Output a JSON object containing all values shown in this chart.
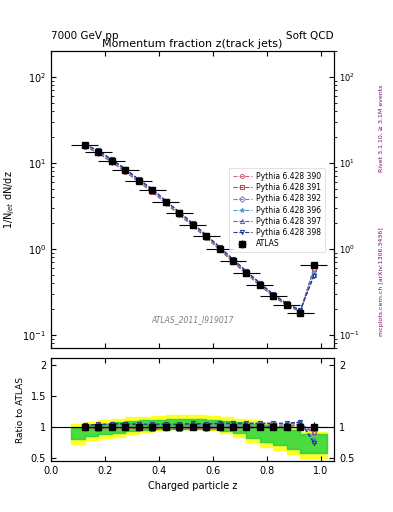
{
  "title_top_left": "7000 GeV pp",
  "title_top_right": "Soft QCD",
  "plot_title": "Momentum fraction z(track jets)",
  "ylabel_main": "1/N$_{jet}$ dN/dz",
  "ylabel_ratio": "Ratio to ATLAS",
  "xlabel": "Charged particle z",
  "rivet_label": "Rivet 3.1.10, ≥ 3.1M events",
  "arxiv_label": "mcplots.cern.ch [arXiv:1306.3436]",
  "watermark": "ATLAS_2011_I919017",
  "z_values": [
    0.125,
    0.175,
    0.225,
    0.275,
    0.325,
    0.375,
    0.425,
    0.475,
    0.525,
    0.575,
    0.625,
    0.675,
    0.725,
    0.775,
    0.825,
    0.875,
    0.925,
    0.975
  ],
  "atlas_y": [
    16.0,
    13.5,
    10.5,
    8.2,
    6.2,
    4.8,
    3.5,
    2.6,
    1.9,
    1.4,
    1.0,
    0.72,
    0.52,
    0.38,
    0.28,
    0.22,
    0.18,
    0.65
  ],
  "atlas_yerr": [
    0.5,
    0.4,
    0.3,
    0.25,
    0.2,
    0.15,
    0.12,
    0.09,
    0.07,
    0.05,
    0.04,
    0.03,
    0.025,
    0.02,
    0.015,
    0.012,
    0.01,
    0.05
  ],
  "py390_y": [
    15.5,
    13.0,
    10.2,
    7.9,
    6.0,
    4.6,
    3.4,
    2.5,
    1.85,
    1.35,
    0.98,
    0.7,
    0.51,
    0.375,
    0.278,
    0.22,
    0.185,
    0.58
  ],
  "py391_y": [
    15.6,
    13.1,
    10.3,
    8.0,
    6.1,
    4.65,
    3.42,
    2.52,
    1.87,
    1.37,
    0.99,
    0.71,
    0.515,
    0.378,
    0.28,
    0.221,
    0.186,
    0.59
  ],
  "py392_y": [
    15.7,
    13.2,
    10.35,
    8.05,
    6.15,
    4.7,
    3.45,
    2.55,
    1.89,
    1.39,
    1.01,
    0.725,
    0.525,
    0.383,
    0.283,
    0.223,
    0.188,
    0.6
  ],
  "py396_y": [
    16.2,
    13.8,
    10.8,
    8.4,
    6.35,
    4.9,
    3.6,
    2.65,
    1.95,
    1.43,
    1.04,
    0.745,
    0.54,
    0.395,
    0.292,
    0.228,
    0.192,
    0.52
  ],
  "py397_y": [
    16.3,
    13.9,
    10.9,
    8.5,
    6.4,
    4.95,
    3.62,
    2.67,
    1.97,
    1.44,
    1.05,
    0.75,
    0.545,
    0.398,
    0.294,
    0.23,
    0.193,
    0.5
  ],
  "py398_y": [
    16.4,
    14.0,
    11.0,
    8.6,
    6.45,
    5.0,
    3.65,
    2.7,
    2.0,
    1.46,
    1.06,
    0.76,
    0.55,
    0.402,
    0.296,
    0.232,
    0.194,
    0.48
  ],
  "band_yellow_lo": [
    0.72,
    0.78,
    0.82,
    0.84,
    0.88,
    0.92,
    0.94,
    0.96,
    0.96,
    0.96,
    0.94,
    0.9,
    0.84,
    0.76,
    0.68,
    0.62,
    0.56,
    0.5
  ],
  "band_yellow_hi": [
    1.05,
    1.08,
    1.1,
    1.12,
    1.15,
    1.16,
    1.17,
    1.18,
    1.18,
    1.18,
    1.17,
    1.15,
    1.13,
    1.1,
    1.06,
    1.02,
    0.98,
    0.92
  ],
  "band_green_lo": [
    0.8,
    0.85,
    0.88,
    0.9,
    0.93,
    0.95,
    0.96,
    0.97,
    0.97,
    0.97,
    0.96,
    0.93,
    0.89,
    0.82,
    0.75,
    0.7,
    0.64,
    0.58
  ],
  "band_green_hi": [
    0.98,
    1.02,
    1.05,
    1.07,
    1.09,
    1.1,
    1.11,
    1.12,
    1.12,
    1.12,
    1.11,
    1.09,
    1.07,
    1.05,
    1.02,
    0.98,
    0.95,
    0.88
  ],
  "colors": {
    "atlas": "#000000",
    "py390": "#cc6677",
    "py391": "#bb4444",
    "py392": "#8877bb",
    "py396": "#5599cc",
    "py397": "#4466bb",
    "py398": "#223388"
  },
  "xlim": [
    0.0,
    1.05
  ],
  "ylim_main": [
    0.07,
    200
  ],
  "ylim_ratio": [
    0.45,
    2.1
  ]
}
